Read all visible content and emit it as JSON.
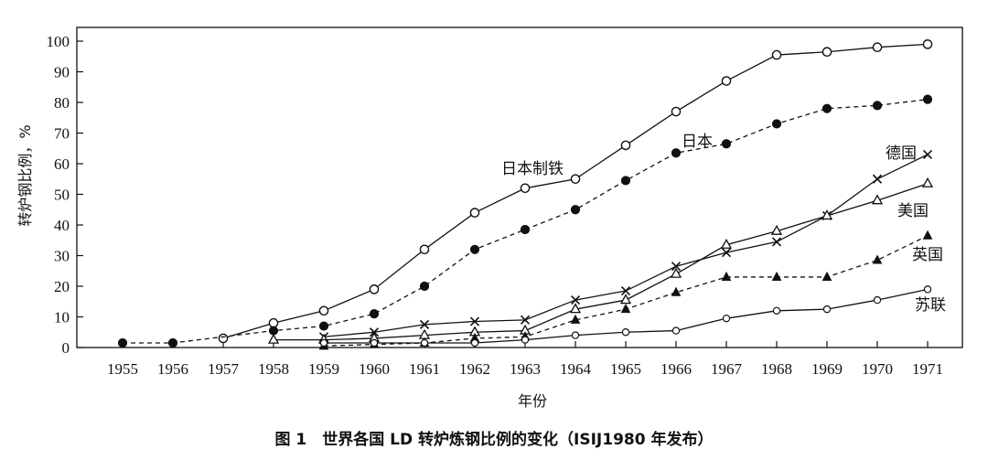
{
  "chart_data": {
    "type": "line",
    "title": "图 1　世界各国 LD 转炉炼钢比例的变化（ISIJ1980 年发布）",
    "xlabel": "年份",
    "ylabel": "转炉钢比例，%",
    "ylim": [
      0,
      100
    ],
    "yticks": [
      0,
      10,
      20,
      30,
      40,
      50,
      60,
      70,
      80,
      90,
      100
    ],
    "categories": [
      "1955",
      "1956",
      "1957",
      "1958",
      "1959",
      "1960",
      "1961",
      "1962",
      "1963",
      "1964",
      "1965",
      "1966",
      "1967",
      "1968",
      "1969",
      "1970",
      "1971"
    ],
    "grid": false,
    "series": [
      {
        "name": "日本制铁",
        "marker": "circle-open",
        "line": "solid",
        "values": [
          null,
          null,
          3,
          8,
          12,
          19,
          32,
          44,
          52,
          55,
          66,
          77,
          87,
          95.5,
          96.5,
          98,
          99
        ]
      },
      {
        "name": "日本",
        "marker": "circle-filled",
        "line": "dashed",
        "values": [
          1.5,
          1.5,
          null,
          5.5,
          7,
          11,
          20,
          32,
          38.5,
          45,
          54.5,
          63.5,
          66.5,
          73,
          78,
          79,
          81
        ]
      },
      {
        "name": "德国",
        "marker": "cross",
        "line": "solid",
        "values": [
          null,
          null,
          null,
          null,
          3.5,
          5,
          7.5,
          8.5,
          9,
          15.5,
          18.5,
          26.5,
          31,
          34.5,
          43,
          55,
          63
        ]
      },
      {
        "name": "美国",
        "marker": "triangle-open",
        "line": "solid",
        "values": [
          null,
          null,
          null,
          2.5,
          2.5,
          3,
          4,
          5,
          5.5,
          12.5,
          15.5,
          24,
          33.5,
          38,
          43,
          48,
          53.5
        ]
      },
      {
        "name": "英国",
        "marker": "triangle-filled",
        "line": "dashed",
        "values": [
          null,
          null,
          null,
          null,
          0.5,
          1,
          1.5,
          3,
          3.5,
          9,
          12.5,
          18,
          23,
          23,
          23,
          28.5,
          36.5
        ]
      },
      {
        "name": "苏联",
        "marker": "circle-open-small",
        "line": "solid",
        "values": [
          null,
          null,
          null,
          null,
          1.5,
          1.5,
          1.5,
          1.5,
          2.5,
          4,
          5,
          5.5,
          9.5,
          12,
          12.5,
          15.5,
          19
        ]
      }
    ]
  }
}
